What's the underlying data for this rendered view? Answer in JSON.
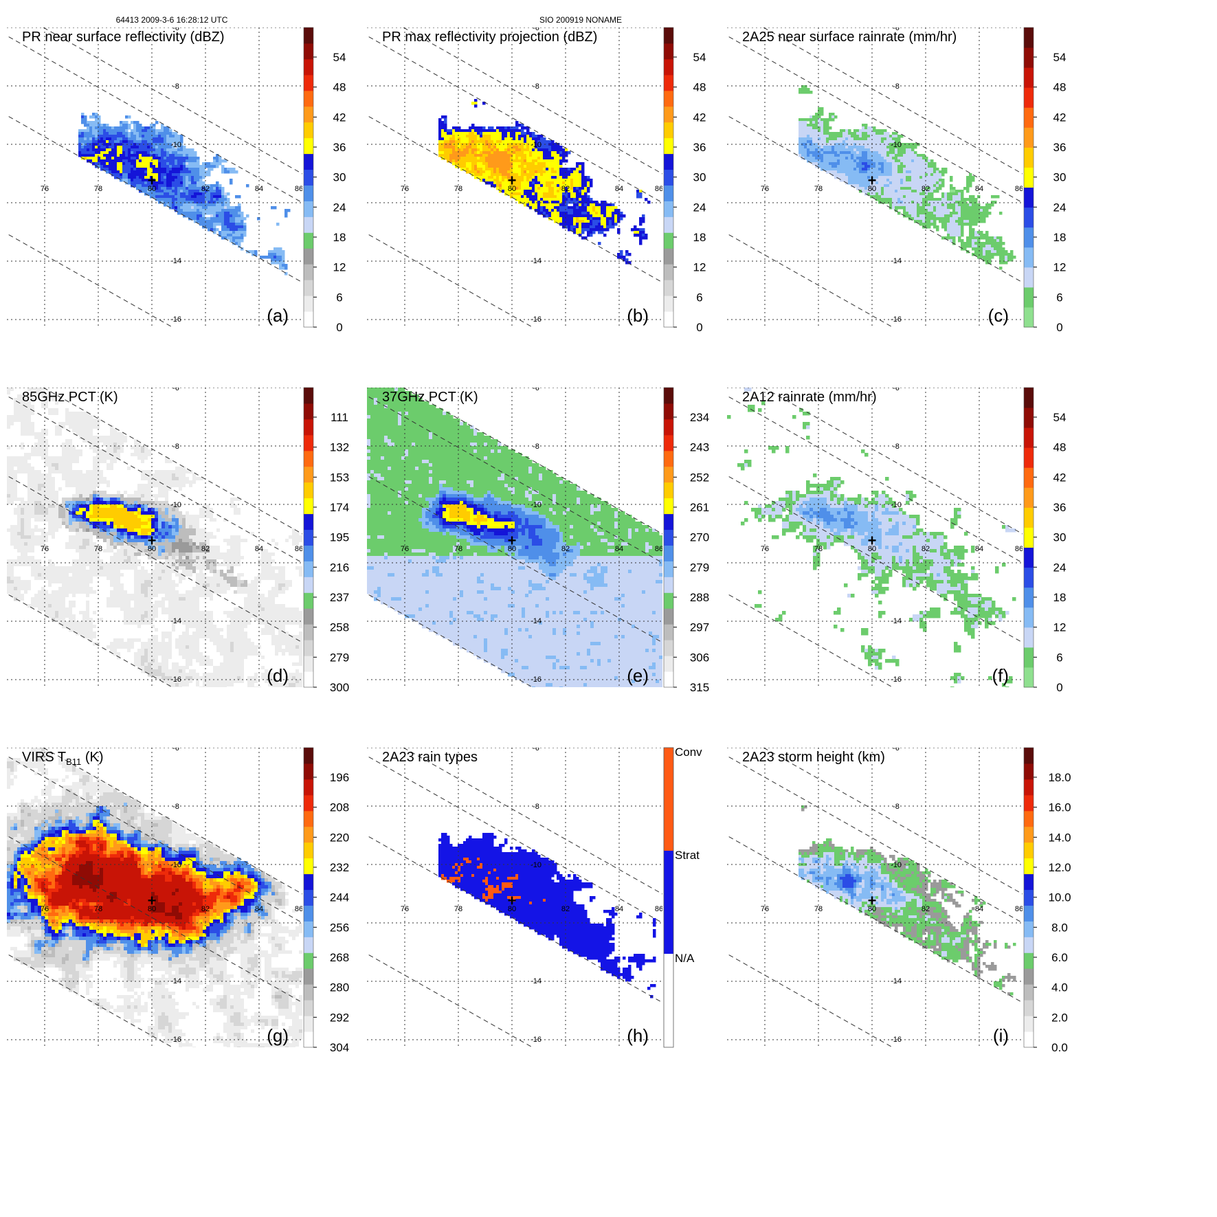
{
  "header": {
    "left": "64413 2009-3-6 16:28:12 UTC",
    "center": "SIO 200919 NONAME"
  },
  "lon_ticks": [
    "76",
    "78",
    "80",
    "82",
    "84",
    "86"
  ],
  "lat_ticks": [
    "-6",
    "-8",
    "-10",
    "-14",
    "-16"
  ],
  "storm_marker": "+",
  "chart_data": [
    {
      "type": "heatmap",
      "tag": "(a)",
      "title": "PR near surface reflectivity (dBZ)",
      "field": "pr_nsr",
      "swath": "pr",
      "colorbar": {
        "ticks": [
          "54",
          "48",
          "42",
          "36",
          "30",
          "24",
          "18",
          "12",
          "6",
          "0"
        ],
        "colors": [
          "#ffffff",
          "#ececec",
          "#d6d6d6",
          "#bdbdbd",
          "#9a9a9a",
          "#6ccc6c",
          "#c8d6f5",
          "#86bbf4",
          "#4f8fe9",
          "#2b4de6",
          "#1414d8",
          "#ffff00",
          "#ffcc00",
          "#ff9a1a",
          "#ff6a10",
          "#ee2a0a",
          "#c81406",
          "#8f0b05",
          "#5a0c0a"
        ]
      }
    },
    {
      "type": "heatmap",
      "tag": "(b)",
      "title": "PR max reflectivity projection (dBZ)",
      "field": "pr_max",
      "swath": "pr",
      "colorbar": {
        "ticks": [
          "54",
          "48",
          "42",
          "36",
          "30",
          "24",
          "18",
          "12",
          "6",
          "0"
        ],
        "colors": [
          "#ffffff",
          "#ececec",
          "#d6d6d6",
          "#bdbdbd",
          "#9a9a9a",
          "#6ccc6c",
          "#c8d6f5",
          "#86bbf4",
          "#4f8fe9",
          "#2b4de6",
          "#1414d8",
          "#ffff00",
          "#ffcc00",
          "#ff9a1a",
          "#ff6a10",
          "#ee2a0a",
          "#c81406",
          "#8f0b05",
          "#5a0c0a"
        ]
      }
    },
    {
      "type": "heatmap",
      "tag": "(c)",
      "title": "2A25 near surface rainrate (mm/hr)",
      "field": "pr_rain",
      "swath": "pr",
      "colorbar": {
        "ticks": [
          "54",
          "48",
          "42",
          "36",
          "30",
          "24",
          "18",
          "12",
          "6",
          "0"
        ],
        "colors": [
          "#8fe08f",
          "#6ccc6c",
          "#c8d6f5",
          "#86bbf4",
          "#4f8fe9",
          "#2b4de6",
          "#1414d8",
          "#ffff00",
          "#ffcc00",
          "#ff9a1a",
          "#ff6a10",
          "#ee2a0a",
          "#c81406",
          "#8f0b05",
          "#5a0c0a"
        ]
      }
    },
    {
      "type": "heatmap",
      "tag": "(d)",
      "title": "85GHz PCT (K)",
      "field": "pct85",
      "swath": "tmi",
      "colorbar": {
        "ticks": [
          "111",
          "132",
          "153",
          "174",
          "195",
          "216",
          "237",
          "258",
          "279",
          "300"
        ],
        "colors": [
          "#ffffff",
          "#ececec",
          "#d6d6d6",
          "#bdbdbd",
          "#9a9a9a",
          "#6ccc6c",
          "#c8d6f5",
          "#86bbf4",
          "#4f8fe9",
          "#2b4de6",
          "#1414d8",
          "#ffff00",
          "#ffcc00",
          "#ff9a1a",
          "#ff6a10",
          "#ee2a0a",
          "#c81406",
          "#8f0b05",
          "#5a0c0a"
        ]
      }
    },
    {
      "type": "heatmap",
      "tag": "(e)",
      "title": "37GHz PCT (K)",
      "field": "pct37",
      "swath": "tmi",
      "colorbar": {
        "ticks": [
          "234",
          "243",
          "252",
          "261",
          "270",
          "279",
          "288",
          "297",
          "306",
          "315"
        ],
        "colors": [
          "#ffffff",
          "#ececec",
          "#d6d6d6",
          "#bdbdbd",
          "#9a9a9a",
          "#6ccc6c",
          "#c8d6f5",
          "#86bbf4",
          "#4f8fe9",
          "#2b4de6",
          "#1414d8",
          "#ffff00",
          "#ffcc00",
          "#ff9a1a",
          "#ff6a10",
          "#ee2a0a",
          "#c81406",
          "#8f0b05",
          "#5a0c0a"
        ]
      }
    },
    {
      "type": "heatmap",
      "tag": "(f)",
      "title": "2A12 rainrate (mm/hr)",
      "field": "tmi_rain",
      "swath": "tmi",
      "colorbar": {
        "ticks": [
          "54",
          "48",
          "42",
          "36",
          "30",
          "24",
          "18",
          "12",
          "6",
          "0"
        ],
        "colors": [
          "#8fe08f",
          "#6ccc6c",
          "#c8d6f5",
          "#86bbf4",
          "#4f8fe9",
          "#2b4de6",
          "#1414d8",
          "#ffff00",
          "#ffcc00",
          "#ff9a1a",
          "#ff6a10",
          "#ee2a0a",
          "#c81406",
          "#8f0b05",
          "#5a0c0a"
        ]
      }
    },
    {
      "type": "heatmap",
      "tag": "(g)",
      "title": "VIRS T",
      "title_sub": "B11",
      "title_unit": " (K)",
      "field": "virs",
      "swath": "tmi",
      "colorbar": {
        "ticks": [
          "196",
          "208",
          "220",
          "232",
          "244",
          "256",
          "268",
          "280",
          "292",
          "304"
        ],
        "colors": [
          "#ffffff",
          "#ececec",
          "#d6d6d6",
          "#bdbdbd",
          "#9a9a9a",
          "#6ccc6c",
          "#c8d6f5",
          "#86bbf4",
          "#4f8fe9",
          "#2b4de6",
          "#1414d8",
          "#ffff00",
          "#ffcc00",
          "#ff9a1a",
          "#ff6a10",
          "#ee2a0a",
          "#c81406",
          "#8f0b05",
          "#5a0c0a"
        ]
      }
    },
    {
      "type": "heatmap",
      "tag": "(h)",
      "title": "2A23 rain types",
      "field": "rain_type",
      "swath": "pr",
      "categories": [
        "Conv",
        "Strat",
        "N/A"
      ],
      "category_colors": [
        "#ff5a14",
        "#1414e6",
        "#ffffff"
      ]
    },
    {
      "type": "heatmap",
      "tag": "(i)",
      "title": "2A23 storm height (km)",
      "field": "storm_height",
      "swath": "pr",
      "colorbar": {
        "ticks": [
          "18.0",
          "16.0",
          "14.0",
          "12.0",
          "10.0",
          "8.0",
          "6.0",
          "4.0",
          "2.0",
          "0.0"
        ],
        "colors": [
          "#ffffff",
          "#ececec",
          "#d6d6d6",
          "#bdbdbd",
          "#9a9a9a",
          "#6ccc6c",
          "#c8d6f5",
          "#86bbf4",
          "#4f8fe9",
          "#2b4de6",
          "#1414d8",
          "#ffff00",
          "#ffcc00",
          "#ff9a1a",
          "#ff6a10",
          "#ee2a0a",
          "#c81406",
          "#8f0b05",
          "#5a0c0a"
        ]
      }
    }
  ]
}
